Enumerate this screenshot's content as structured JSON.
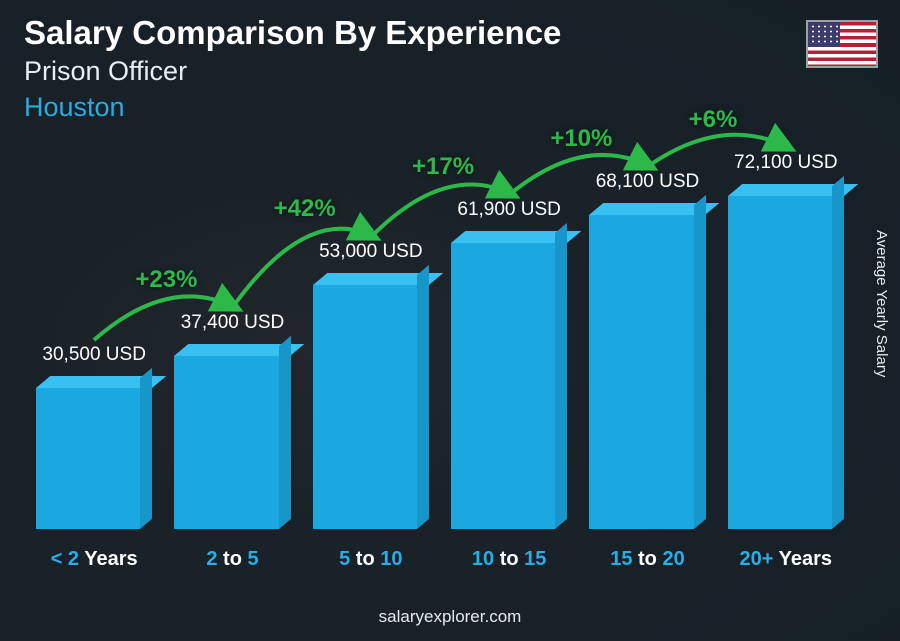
{
  "header": {
    "title": "Salary Comparison By Experience",
    "title_fontsize": 33,
    "subtitle": "Prison Officer",
    "subtitle_fontsize": 27,
    "city": "Houston",
    "city_fontsize": 27,
    "city_color": "#29abe2"
  },
  "axis": {
    "ylabel": "Average Yearly Salary"
  },
  "footer": {
    "text": "salaryexplorer.com"
  },
  "chart": {
    "type": "bar",
    "unit": "USD",
    "max_value": 80000,
    "bar_front_color": "#1ba8e0",
    "bar_side_color": "#1796c9",
    "bar_top_color": "#38c0f2",
    "value_color": "#ffffff",
    "value_fontsize": 19,
    "xlabel_accent": "#27aee6",
    "xlabel_white": "#ffffff",
    "pct_color": "#2db94a",
    "pct_fontsize": 24,
    "arc_stroke": "#2db94a",
    "arc_width": 4,
    "background_overlay": "rgba(20,30,38,0.85)",
    "categories": [
      {
        "label_pre": "< 2",
        "label_post": " Years",
        "value": 30500,
        "value_text": "30,500 USD"
      },
      {
        "label_pre": "2",
        "label_mid": " to ",
        "label_post": "5",
        "value": 37400,
        "value_text": "37,400 USD",
        "pct": "+23%"
      },
      {
        "label_pre": "5",
        "label_mid": " to ",
        "label_post": "10",
        "value": 53000,
        "value_text": "53,000 USD",
        "pct": "+42%"
      },
      {
        "label_pre": "10",
        "label_mid": " to ",
        "label_post": "15",
        "value": 61900,
        "value_text": "61,900 USD",
        "pct": "+17%"
      },
      {
        "label_pre": "15",
        "label_mid": " to ",
        "label_post": "20",
        "value": 68100,
        "value_text": "68,100 USD",
        "pct": "+10%"
      },
      {
        "label_pre": "20+",
        "label_post": " Years",
        "value": 72100,
        "value_text": "72,100 USD",
        "pct": "+6%"
      }
    ]
  }
}
